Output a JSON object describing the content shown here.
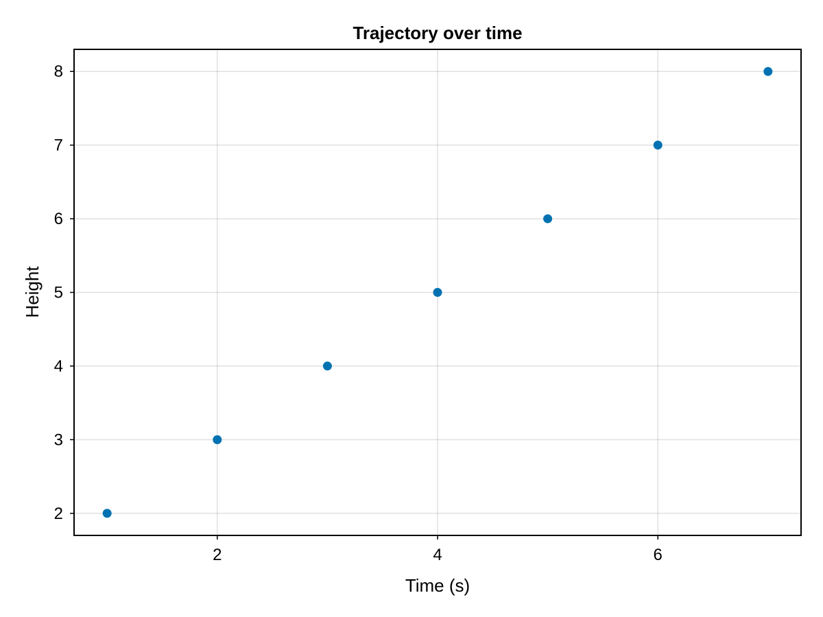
{
  "chart_data": {
    "type": "scatter",
    "title": "Trajectory over time",
    "xlabel": "Time (s)",
    "ylabel": "Height",
    "x": [
      1,
      2,
      3,
      4,
      5,
      6,
      7
    ],
    "y": [
      2,
      3,
      4,
      5,
      6,
      7,
      8
    ],
    "xlim": [
      0.7,
      7.3
    ],
    "ylim": [
      1.7,
      8.3
    ],
    "xticks": [
      2,
      4,
      6
    ],
    "yticks": [
      2,
      3,
      4,
      5,
      6,
      7,
      8
    ],
    "xtick_labels": [
      "2",
      "4",
      "6"
    ],
    "ytick_labels": [
      "2",
      "3",
      "4",
      "5",
      "6",
      "7",
      "8"
    ],
    "grid": true,
    "legend": "none",
    "marker_color": "#0072B2"
  }
}
